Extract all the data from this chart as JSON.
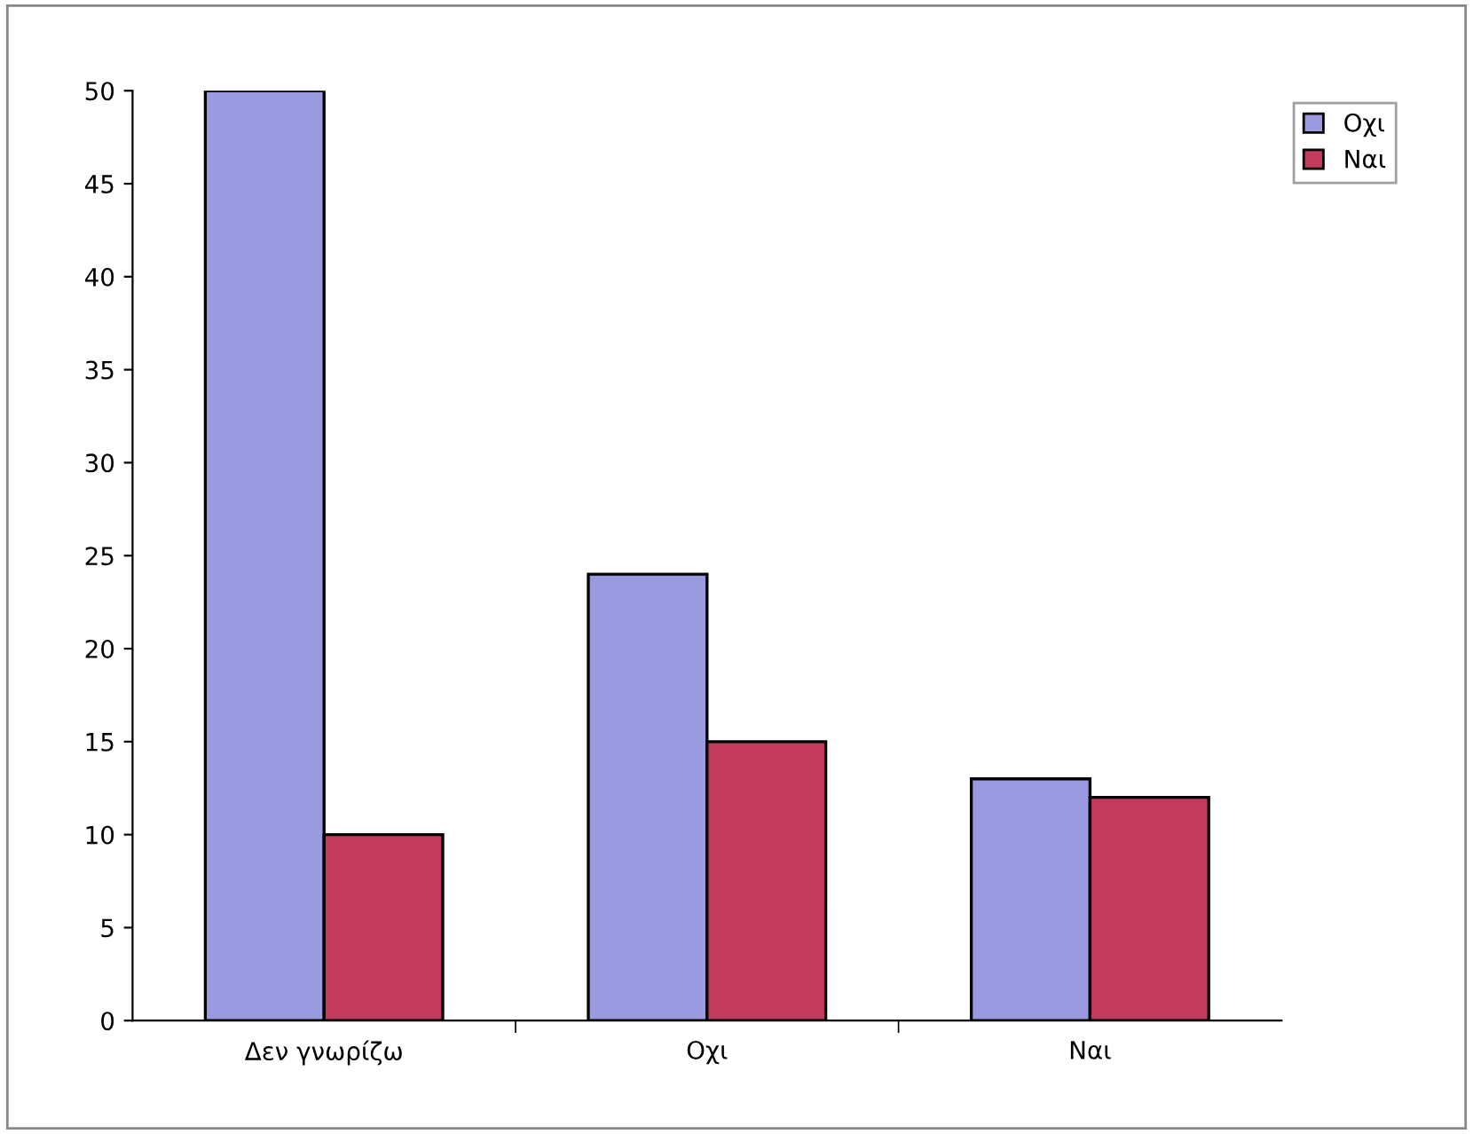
{
  "chart_data": {
    "type": "bar",
    "categories": [
      "Δεν γνωρίζω",
      "Οχι",
      "Ναι"
    ],
    "series": [
      {
        "name": "Οχι",
        "color": "#9a9ae0",
        "values": [
          50,
          24,
          13
        ]
      },
      {
        "name": "Ναι",
        "color": "#c23a5e",
        "values": [
          10,
          15,
          12
        ]
      }
    ],
    "ylim": [
      0,
      50
    ],
    "yticks": [
      0,
      5,
      10,
      15,
      20,
      25,
      30,
      35,
      40,
      45,
      50
    ],
    "grid": false,
    "legend": "top right"
  }
}
